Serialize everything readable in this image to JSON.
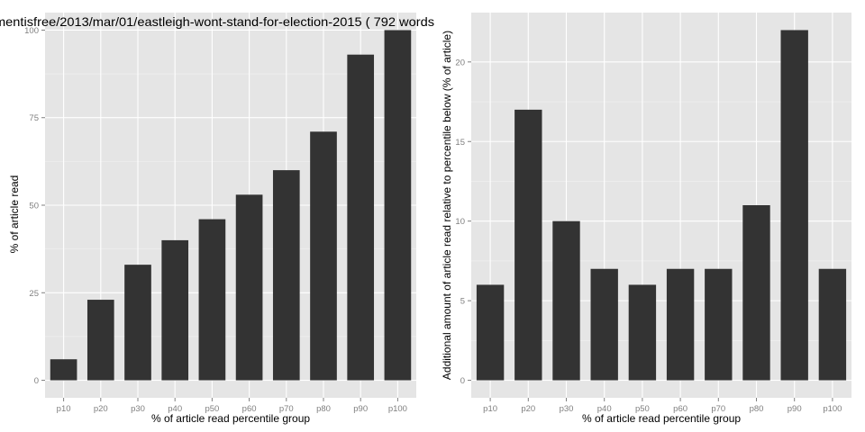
{
  "chart_data": [
    {
      "type": "bar",
      "title": "mentisfree/2013/mar/01/eastleigh-wont-stand-for-election-2015 ( 792 words",
      "xlabel": "% of article read percentile group",
      "ylabel": "% of article read",
      "categories": [
        "p10",
        "p20",
        "p30",
        "p40",
        "p50",
        "p60",
        "p70",
        "p80",
        "p90",
        "p100"
      ],
      "values": [
        6,
        23,
        33,
        40,
        46,
        53,
        60,
        71,
        93,
        100
      ],
      "ylim": [
        -5,
        105
      ],
      "yticks": [
        0,
        25,
        50,
        75,
        100
      ],
      "grid": true,
      "bar_color": "#333333",
      "panel_color": "#e5e5e5"
    },
    {
      "type": "bar",
      "title": "",
      "xlabel": "% of article read percentile group",
      "ylabel": "Additional amount of article read relative to percentile below (% of article)",
      "categories": [
        "p10",
        "p20",
        "p30",
        "p40",
        "p50",
        "p60",
        "p70",
        "p80",
        "p90",
        "p100"
      ],
      "values": [
        6,
        17,
        10,
        7,
        6,
        7,
        7,
        11,
        22,
        7
      ],
      "ylim": [
        -1.1,
        23.1
      ],
      "yticks": [
        0,
        5,
        10,
        15,
        20
      ],
      "grid": true,
      "bar_color": "#333333",
      "panel_color": "#e5e5e5"
    }
  ]
}
